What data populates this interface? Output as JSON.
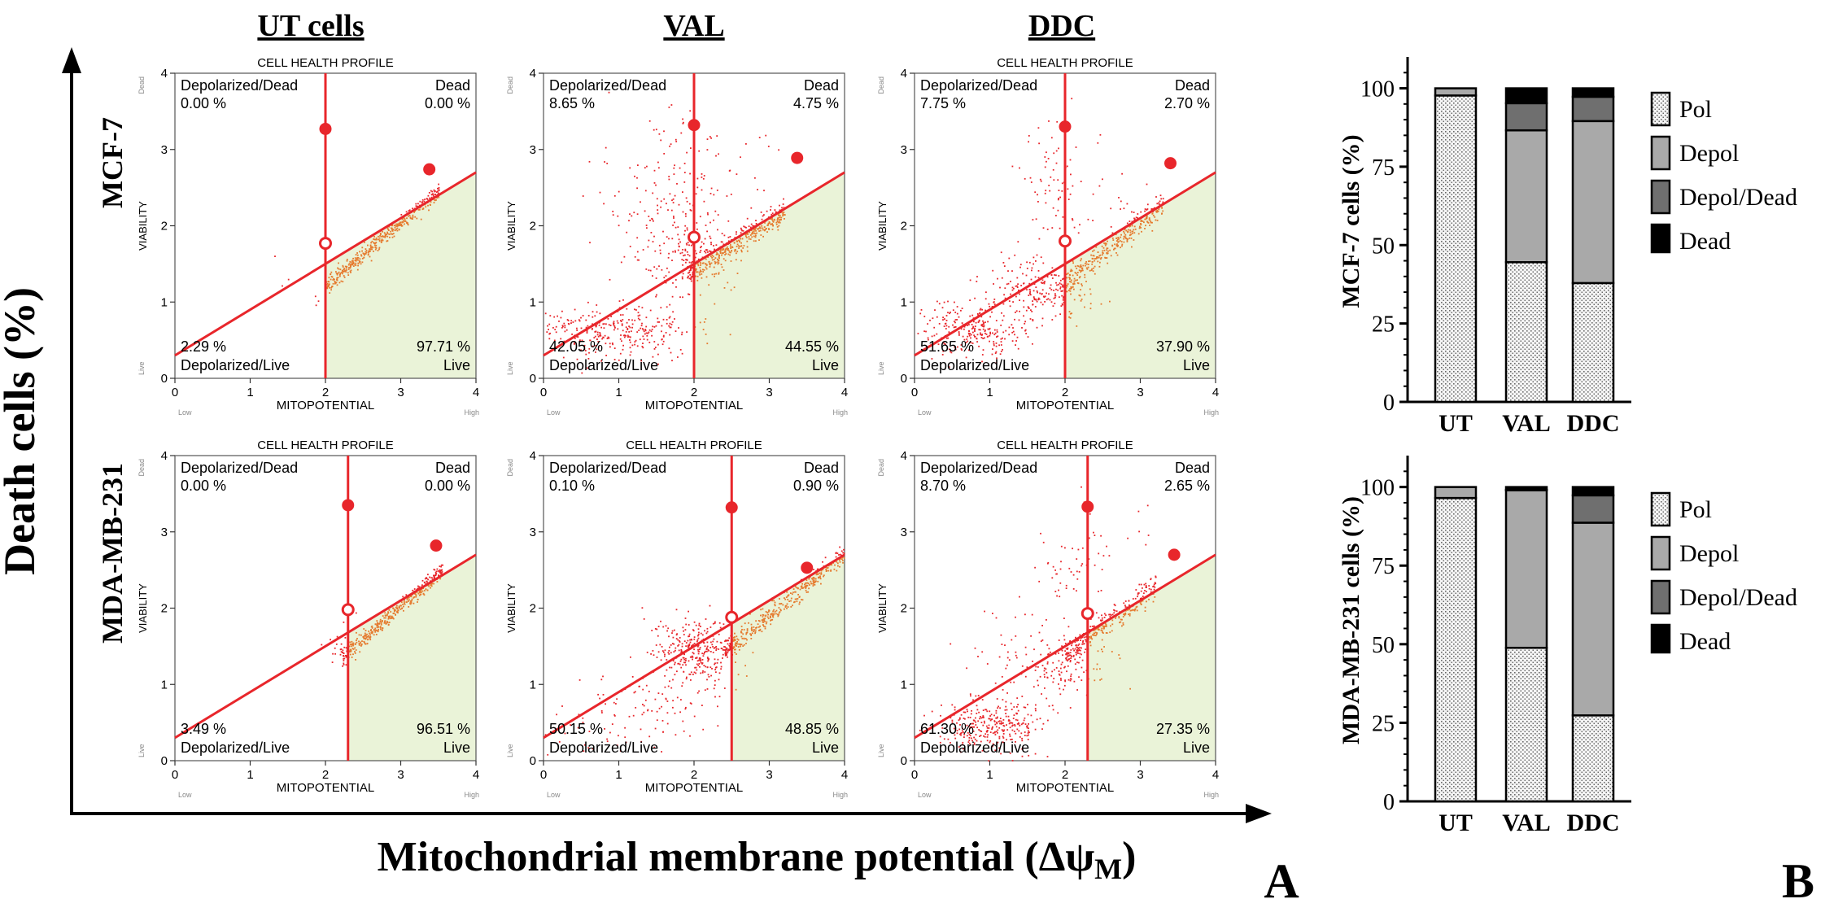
{
  "figure": {
    "y_axis_label": "Death cells (%)",
    "x_axis_label_main": "Mitochondrial membrane potential (Δψ",
    "x_axis_label_sub": "M",
    "x_axis_label_close": ")",
    "panel_a_letter": "A",
    "panel_b_letter": "B",
    "column_titles": [
      "UT cells",
      "VAL",
      "DDC"
    ],
    "row_labels": [
      "MCF-7",
      "MDA-MB-231"
    ]
  },
  "colors": {
    "marker_line": "#e8262b",
    "dot": "#e8262b",
    "live_dot": "#e57a2e",
    "live_region": "#eaf3d8",
    "pol_fill": "#f2f2f2",
    "depol_fill": "#a9a9a9",
    "depol_dead_fill": "#6f6f6f",
    "dead_fill": "#000000"
  },
  "chart_data": [
    {
      "type": "scatter",
      "id": "mcf7-ut",
      "title": "CELL HEALTH PROFILE",
      "xlabel": "MITOPOTENTIAL",
      "ylabel": "VIABILITY",
      "x_low_label": "Low",
      "x_high_label": "High",
      "y_low_label": "Live",
      "y_high_label": "Dead",
      "xlim": [
        0,
        4
      ],
      "ylim": [
        0,
        4
      ],
      "xticks": [
        0,
        1,
        2,
        3,
        4
      ],
      "yticks": [
        0,
        1,
        2,
        3,
        4
      ],
      "vertical_marker_x": 2.0,
      "diagonal_line": {
        "slope": 0.6,
        "intercept": 0.3
      },
      "marker_points": {
        "open": [
          2.0,
          1.77
        ],
        "upper": [
          2.0,
          3.27
        ],
        "right": [
          3.38,
          2.74
        ]
      },
      "quadrants": {
        "depolarized_dead": {
          "label": "Depolarized/Dead",
          "value": "0.00 %"
        },
        "dead": {
          "label": "Dead",
          "value": "0.00 %"
        },
        "depolarized_live": {
          "label": "Depolarized/Live",
          "value": "2.29 %"
        },
        "live": {
          "label": "Live",
          "value": "97.71 %"
        }
      },
      "clusters": [
        {
          "kind": "diagonal",
          "x": [
            2.0,
            3.5
          ],
          "slope": 0.83,
          "intercept": -0.44,
          "spread": 0.05,
          "n": 400
        },
        {
          "kind": "blob",
          "cx": 1.8,
          "cy": 1.2,
          "sx": 0.25,
          "sy": 0.15,
          "n": 8
        }
      ]
    },
    {
      "type": "scatter",
      "id": "mcf7-val",
      "title": "",
      "xlabel": "MITOPOTENTIAL",
      "ylabel": "VIABILITY",
      "x_low_label": "Low",
      "x_high_label": "High",
      "y_low_label": "Live",
      "y_high_label": "Dead",
      "xlim": [
        0,
        4
      ],
      "ylim": [
        0,
        4
      ],
      "xticks": [
        0,
        1,
        2,
        3,
        4
      ],
      "yticks": [
        0,
        1,
        2,
        3,
        4
      ],
      "vertical_marker_x": 2.0,
      "diagonal_line": {
        "slope": 0.6,
        "intercept": 0.3
      },
      "marker_points": {
        "open": [
          2.0,
          1.85
        ],
        "upper": [
          2.0,
          3.32
        ],
        "right": [
          3.37,
          2.89
        ]
      },
      "quadrants": {
        "depolarized_dead": {
          "label": "Depolarized/Dead",
          "value": "8.65 %"
        },
        "dead": {
          "label": "Dead",
          "value": "4.75 %"
        },
        "depolarized_live": {
          "label": "Depolarized/Live",
          "value": "42.05 %"
        },
        "live": {
          "label": "Live",
          "value": "44.55 %"
        }
      },
      "clusters": [
        {
          "kind": "diagonal",
          "x": [
            1.9,
            3.2
          ],
          "slope": 0.62,
          "intercept": 0.2,
          "spread": 0.09,
          "n": 350
        },
        {
          "kind": "blob",
          "cx": 0.9,
          "cy": 0.6,
          "sx": 0.5,
          "sy": 0.17,
          "n": 320
        },
        {
          "kind": "blob",
          "cx": 1.85,
          "cy": 1.55,
          "sx": 0.3,
          "sy": 0.35,
          "n": 160
        },
        {
          "kind": "blob",
          "cx": 1.8,
          "cy": 2.55,
          "sx": 0.35,
          "sy": 0.55,
          "n": 120
        },
        {
          "kind": "blob",
          "cx": 1.1,
          "cy": 2.1,
          "sx": 0.45,
          "sy": 0.5,
          "n": 30
        },
        {
          "kind": "blob",
          "cx": 2.5,
          "cy": 2.8,
          "sx": 0.4,
          "sy": 0.25,
          "n": 15
        }
      ]
    },
    {
      "type": "scatter",
      "id": "mcf7-ddc",
      "title": "CELL HEALTH PROFILE",
      "xlabel": "MITOPOTENTIAL",
      "ylabel": "VIABILITY",
      "x_low_label": "Low",
      "x_high_label": "High",
      "y_low_label": "Live",
      "y_high_label": "Dead",
      "xlim": [
        0,
        4
      ],
      "ylim": [
        0,
        4
      ],
      "xticks": [
        0,
        1,
        2,
        3,
        4
      ],
      "yticks": [
        0,
        1,
        2,
        3,
        4
      ],
      "vertical_marker_x": 2.0,
      "diagonal_line": {
        "slope": 0.6,
        "intercept": 0.3
      },
      "marker_points": {
        "open": [
          2.0,
          1.8
        ],
        "upper": [
          2.0,
          3.3
        ],
        "right": [
          3.4,
          2.82
        ]
      },
      "quadrants": {
        "depolarized_dead": {
          "label": "Depolarized/Dead",
          "value": "7.75 %"
        },
        "dead": {
          "label": "Dead",
          "value": "2.70 %"
        },
        "depolarized_live": {
          "label": "Depolarized/Live",
          "value": "51.65 %"
        },
        "live": {
          "label": "Live",
          "value": "37.90 %"
        }
      },
      "clusters": [
        {
          "kind": "diagonal",
          "x": [
            1.9,
            3.3
          ],
          "slope": 0.8,
          "intercept": -0.35,
          "spread": 0.08,
          "n": 320
        },
        {
          "kind": "blob",
          "cx": 0.75,
          "cy": 0.65,
          "sx": 0.35,
          "sy": 0.2,
          "n": 260
        },
        {
          "kind": "blob",
          "cx": 1.6,
          "cy": 1.15,
          "sx": 0.35,
          "sy": 0.2,
          "n": 200
        },
        {
          "kind": "blob",
          "cx": 1.9,
          "cy": 2.5,
          "sx": 0.25,
          "sy": 0.5,
          "n": 70
        },
        {
          "kind": "blob",
          "cx": 2.5,
          "cy": 2.3,
          "sx": 0.4,
          "sy": 0.3,
          "n": 25
        }
      ]
    },
    {
      "type": "scatter",
      "id": "mda-ut",
      "title": "CELL HEALTH PROFILE",
      "xlabel": "MITOPOTENTIAL",
      "ylabel": "VIABILITY",
      "x_low_label": "Low",
      "x_high_label": "High",
      "y_low_label": "Live",
      "y_high_label": "Dead",
      "xlim": [
        0,
        4
      ],
      "ylim": [
        0,
        4
      ],
      "xticks": [
        0,
        1,
        2,
        3,
        4
      ],
      "yticks": [
        0,
        1,
        2,
        3,
        4
      ],
      "vertical_marker_x": 2.3,
      "diagonal_line": {
        "slope": 0.6,
        "intercept": 0.3
      },
      "marker_points": {
        "open": [
          2.3,
          1.98
        ],
        "upper": [
          2.3,
          3.35
        ],
        "right": [
          3.47,
          2.82
        ]
      },
      "quadrants": {
        "depolarized_dead": {
          "label": "Depolarized/Dead",
          "value": "0.00 %"
        },
        "dead": {
          "label": "Dead",
          "value": "0.00 %"
        },
        "depolarized_live": {
          "label": "Depolarized/Live",
          "value": "3.49 %"
        },
        "live": {
          "label": "Live",
          "value": "96.51 %"
        }
      },
      "clusters": [
        {
          "kind": "diagonal",
          "x": [
            2.2,
            3.55
          ],
          "slope": 0.85,
          "intercept": -0.52,
          "spread": 0.05,
          "n": 400
        },
        {
          "kind": "blob",
          "cx": 2.2,
          "cy": 1.5,
          "sx": 0.15,
          "sy": 0.2,
          "n": 25
        }
      ]
    },
    {
      "type": "scatter",
      "id": "mda-val",
      "title": "CELL HEALTH PROFILE",
      "xlabel": "MITOPOTENTIAL",
      "ylabel": "VIABILITY",
      "x_low_label": "Low",
      "x_high_label": "High",
      "y_low_label": "Live",
      "y_high_label": "Dead",
      "xlim": [
        0,
        4
      ],
      "ylim": [
        0,
        4
      ],
      "xticks": [
        0,
        1,
        2,
        3,
        4
      ],
      "yticks": [
        0,
        1,
        2,
        3,
        4
      ],
      "vertical_marker_x": 2.5,
      "diagonal_line": {
        "slope": 0.6,
        "intercept": 0.3
      },
      "marker_points": {
        "open": [
          2.5,
          1.88
        ],
        "upper": [
          2.5,
          3.32
        ],
        "right": [
          3.5,
          2.53
        ]
      },
      "quadrants": {
        "depolarized_dead": {
          "label": "Depolarized/Dead",
          "value": "0.10 %"
        },
        "dead": {
          "label": "Dead",
          "value": "0.90 %"
        },
        "depolarized_live": {
          "label": "Depolarized/Live",
          "value": "50.15 %"
        },
        "live": {
          "label": "Live",
          "value": "48.85 %"
        }
      },
      "clusters": [
        {
          "kind": "diagonal",
          "x": [
            2.4,
            4.0
          ],
          "slope": 0.8,
          "intercept": -0.48,
          "spread": 0.07,
          "n": 360
        },
        {
          "kind": "blob",
          "cx": 2.0,
          "cy": 1.45,
          "sx": 0.28,
          "sy": 0.22,
          "n": 320
        },
        {
          "kind": "blob",
          "cx": 1.3,
          "cy": 0.75,
          "sx": 0.45,
          "sy": 0.25,
          "n": 90
        },
        {
          "kind": "blob",
          "cx": 0.6,
          "cy": 0.3,
          "sx": 0.35,
          "sy": 0.15,
          "n": 25
        }
      ]
    },
    {
      "type": "scatter",
      "id": "mda-ddc",
      "title": "CELL HEALTH PROFILE",
      "xlabel": "MITOPOTENTIAL",
      "ylabel": "VIABILITY",
      "x_low_label": "Low",
      "x_high_label": "High",
      "y_low_label": "Live",
      "y_high_label": "Dead",
      "xlim": [
        0,
        4
      ],
      "ylim": [
        0,
        4
      ],
      "xticks": [
        0,
        1,
        2,
        3,
        4
      ],
      "yticks": [
        0,
        1,
        2,
        3,
        4
      ],
      "vertical_marker_x": 2.3,
      "diagonal_line": {
        "slope": 0.6,
        "intercept": 0.3
      },
      "marker_points": {
        "open": [
          2.3,
          1.93
        ],
        "upper": [
          2.3,
          3.33
        ],
        "right": [
          3.45,
          2.7
        ]
      },
      "quadrants": {
        "depolarized_dead": {
          "label": "Depolarized/Dead",
          "value": "8.70 %"
        },
        "dead": {
          "label": "Dead",
          "value": "2.65 %"
        },
        "depolarized_live": {
          "label": "Depolarized/Live",
          "value": "61.30 %"
        },
        "live": {
          "label": "Live",
          "value": "27.35 %"
        }
      },
      "clusters": [
        {
          "kind": "diagonal",
          "x": [
            2.0,
            3.2
          ],
          "slope": 0.75,
          "intercept": -0.1,
          "spread": 0.08,
          "n": 280
        },
        {
          "kind": "blob",
          "cx": 1.0,
          "cy": 0.5,
          "sx": 0.35,
          "sy": 0.18,
          "n": 320
        },
        {
          "kind": "blob",
          "cx": 1.9,
          "cy": 1.25,
          "sx": 0.3,
          "sy": 0.2,
          "n": 130
        },
        {
          "kind": "blob",
          "cx": 2.1,
          "cy": 2.5,
          "sx": 0.3,
          "sy": 0.4,
          "n": 60
        },
        {
          "kind": "blob",
          "cx": 1.3,
          "cy": 1.6,
          "sx": 0.4,
          "sy": 0.35,
          "n": 40
        },
        {
          "kind": "blob",
          "cx": 2.9,
          "cy": 3.2,
          "sx": 0.3,
          "sy": 0.3,
          "n": 8
        }
      ]
    },
    {
      "type": "bar",
      "stacked": true,
      "id": "mcf7-stacked",
      "ylabel": "MCF-7 cells (%)",
      "ylim": [
        0,
        110
      ],
      "yticks": [
        0,
        25,
        50,
        75,
        100
      ],
      "categories": [
        "UT",
        "VAL",
        "DDC"
      ],
      "series": [
        {
          "name": "Pol",
          "values": [
            97.71,
            44.55,
            37.9
          ],
          "color_key": "pol_fill",
          "pattern": true
        },
        {
          "name": "Depol",
          "values": [
            2.29,
            42.05,
            51.65
          ],
          "color_key": "depol_fill"
        },
        {
          "name": "Depol/Dead",
          "values": [
            0.0,
            8.65,
            7.75
          ],
          "color_key": "depol_dead_fill"
        },
        {
          "name": "Dead",
          "values": [
            0.0,
            4.75,
            2.7
          ],
          "color_key": "dead_fill"
        }
      ]
    },
    {
      "type": "bar",
      "stacked": true,
      "id": "mda-stacked",
      "ylabel": "MDA-MB-231 cells (%)",
      "ylim": [
        0,
        110
      ],
      "yticks": [
        0,
        25,
        50,
        75,
        100
      ],
      "categories": [
        "UT",
        "VAL",
        "DDC"
      ],
      "series": [
        {
          "name": "Pol",
          "values": [
            96.51,
            48.85,
            27.35
          ],
          "color_key": "pol_fill",
          "pattern": true
        },
        {
          "name": "Depol",
          "values": [
            3.49,
            50.15,
            61.3
          ],
          "color_key": "depol_fill"
        },
        {
          "name": "Depol/Dead",
          "values": [
            0.0,
            0.1,
            8.7
          ],
          "color_key": "depol_dead_fill"
        },
        {
          "name": "Dead",
          "values": [
            0.0,
            0.9,
            2.65
          ],
          "color_key": "dead_fill"
        }
      ]
    }
  ]
}
